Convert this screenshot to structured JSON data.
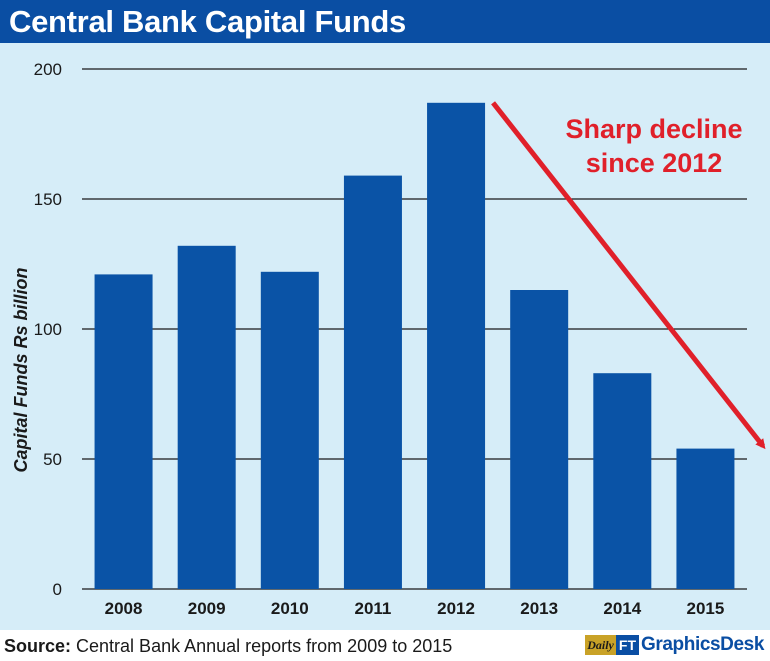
{
  "header": {
    "title": "Central Bank Capital Funds"
  },
  "chart_data": {
    "type": "bar",
    "categories": [
      "2008",
      "2009",
      "2010",
      "2011",
      "2012",
      "2013",
      "2014",
      "2015"
    ],
    "values": [
      121,
      132,
      122,
      159,
      187,
      115,
      83,
      54
    ],
    "title": "Central Bank Capital Funds",
    "xlabel": "",
    "ylabel": "Capital Funds Rs billion",
    "ylim": [
      0,
      200
    ],
    "yticks": [
      0,
      50,
      100,
      150,
      200
    ],
    "grid": true,
    "annotation": {
      "text_lines": [
        "Sharp decline",
        "since 2012"
      ],
      "arrow": "from 2012 bar downward to the right past 2015"
    },
    "colors": {
      "bar": "#0a53a6",
      "background": "#d6edf8",
      "grid": "#1a1a1a",
      "annotation": "#e0202a"
    }
  },
  "footer": {
    "source_label": "Source:",
    "source_text": " Central Bank Annual reports from 2009 to 2015",
    "credit_daily": "Daily",
    "credit_ft": "FT",
    "credit_desk": "GraphicsDesk"
  }
}
